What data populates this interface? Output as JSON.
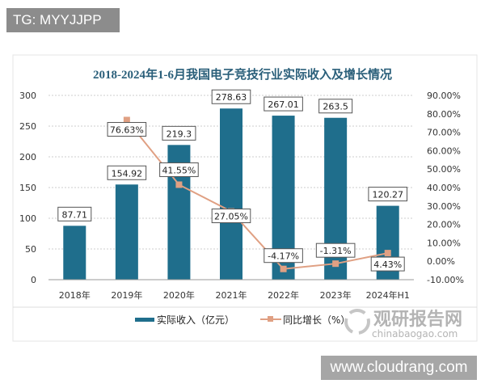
{
  "watermark_tag": "TG: MYYJJPP",
  "watermark_site": "www.cloudrang.com",
  "logo": {
    "text": "观研报告网",
    "subtext": "chinabaogao.com"
  },
  "chart_data": {
    "type": "bar+line",
    "title": "2018-2024年1-6月我国电子竞技行业实际收入及增长情况",
    "categories": [
      "2018年",
      "2019年",
      "2020年",
      "2021年",
      "2022年",
      "2023年",
      "2024年H1"
    ],
    "series": [
      {
        "name": "实际收入（亿元）",
        "type": "bar",
        "axis": "left",
        "color": "#1f6e8c",
        "values": [
          87.71,
          154.92,
          219.3,
          278.63,
          267.01,
          263.5,
          120.27
        ],
        "labels": [
          "87.71",
          "154.92",
          "219.3",
          "278.63",
          "267.01",
          "263.5",
          "120.27"
        ]
      },
      {
        "name": "同比增长（%）",
        "type": "line",
        "axis": "right",
        "color": "#e0a083",
        "values": [
          null,
          76.63,
          41.55,
          27.05,
          -4.17,
          -1.31,
          4.43
        ],
        "labels": [
          "",
          "76.63%",
          "41.55%",
          "27.05%",
          "-4.17%",
          "-1.31%",
          "4.43%"
        ]
      }
    ],
    "y_left": {
      "range": [
        0,
        300
      ],
      "ticks": [
        "0",
        "50",
        "100",
        "150",
        "200",
        "250",
        "300"
      ]
    },
    "y_right": {
      "range": [
        -10,
        90
      ],
      "ticks": [
        "-10.00%",
        "0.00%",
        "10.00%",
        "20.00%",
        "30.00%",
        "40.00%",
        "50.00%",
        "60.00%",
        "70.00%",
        "80.00%",
        "90.00%"
      ]
    },
    "grid": true,
    "legend": "bottom"
  }
}
